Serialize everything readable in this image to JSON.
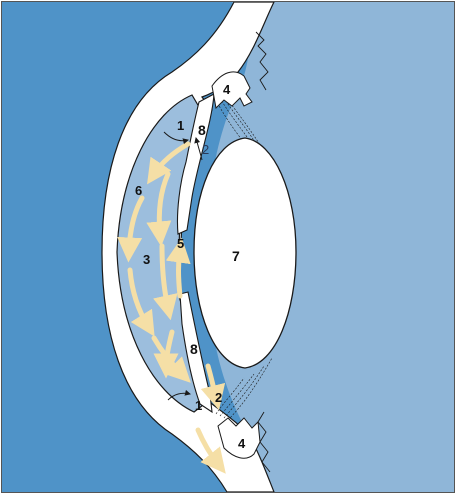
{
  "labels": {
    "l1_top": "1",
    "l1_bottom": "1",
    "l2_top": "2",
    "l2_bottom": "2",
    "l3": "3",
    "l4_top": "4",
    "l4_bottom": "4",
    "l5": "5",
    "l6": "6",
    "l7": "7",
    "l8_top": "8",
    "l8_bottom": "8"
  },
  "colors": {
    "cornea_side": "#4f93c8",
    "chamber": "#9cbedd",
    "vitreous_side": "#8fb6d8",
    "tissue": "#ffffff",
    "outline": "#1a1a1a",
    "flow_arrow": "#f5dfa6"
  }
}
